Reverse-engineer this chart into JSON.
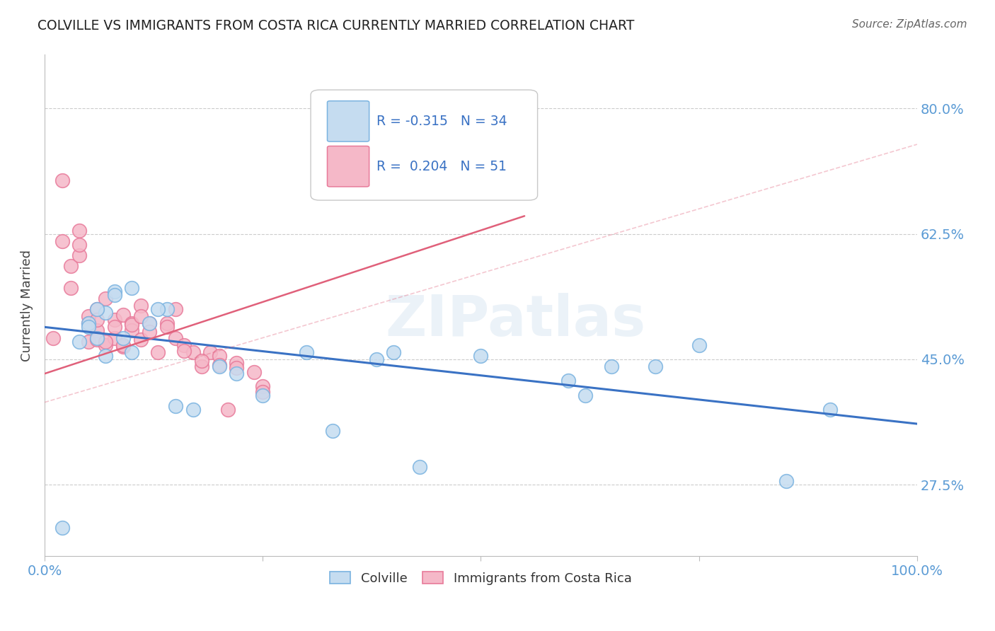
{
  "title": "COLVILLE VS IMMIGRANTS FROM COSTA RICA CURRENTLY MARRIED CORRELATION CHART",
  "source": "Source: ZipAtlas.com",
  "ylabel": "Currently Married",
  "xlim": [
    0.0,
    1.0
  ],
  "ylim": [
    0.175,
    0.875
  ],
  "ytick_labels": [
    "27.5%",
    "45.0%",
    "62.5%",
    "80.0%"
  ],
  "ytick_values": [
    0.275,
    0.45,
    0.625,
    0.8
  ],
  "grid_color": "#cccccc",
  "background_color": "#ffffff",
  "blue_edge": "#7ab3e0",
  "blue_fill": "#c5dcf0",
  "pink_edge": "#e87a9a",
  "pink_fill": "#f5b8c8",
  "trend_blue": "#3a72c4",
  "trend_pink": "#e0607a",
  "R_blue": -0.315,
  "N_blue": 34,
  "R_pink": 0.204,
  "N_pink": 51,
  "watermark": "ZIPatlas",
  "blue_scatter_x": [
    0.02,
    0.04,
    0.05,
    0.06,
    0.07,
    0.07,
    0.08,
    0.09,
    0.1,
    0.12,
    0.14,
    0.17,
    0.2,
    0.22,
    0.25,
    0.3,
    0.38,
    0.4,
    0.43,
    0.5,
    0.6,
    0.62,
    0.65,
    0.7,
    0.75,
    0.85,
    0.9,
    0.05,
    0.06,
    0.08,
    0.1,
    0.13,
    0.15,
    0.33
  ],
  "blue_scatter_y": [
    0.215,
    0.475,
    0.5,
    0.48,
    0.515,
    0.455,
    0.545,
    0.48,
    0.46,
    0.5,
    0.52,
    0.38,
    0.44,
    0.43,
    0.4,
    0.46,
    0.45,
    0.46,
    0.3,
    0.455,
    0.42,
    0.4,
    0.44,
    0.44,
    0.47,
    0.28,
    0.38,
    0.495,
    0.52,
    0.54,
    0.55,
    0.52,
    0.385,
    0.35
  ],
  "pink_scatter_x": [
    0.01,
    0.02,
    0.02,
    0.03,
    0.03,
    0.04,
    0.04,
    0.05,
    0.05,
    0.06,
    0.06,
    0.06,
    0.07,
    0.07,
    0.08,
    0.08,
    0.09,
    0.09,
    0.1,
    0.1,
    0.11,
    0.11,
    0.12,
    0.13,
    0.14,
    0.15,
    0.15,
    0.16,
    0.17,
    0.18,
    0.19,
    0.2,
    0.21,
    0.22,
    0.24,
    0.25,
    0.04,
    0.05,
    0.06,
    0.07,
    0.08,
    0.09,
    0.1,
    0.11,
    0.12,
    0.14,
    0.16,
    0.18,
    0.2,
    0.22,
    0.25
  ],
  "pink_scatter_y": [
    0.48,
    0.7,
    0.615,
    0.58,
    0.55,
    0.63,
    0.595,
    0.51,
    0.475,
    0.52,
    0.49,
    0.478,
    0.535,
    0.47,
    0.505,
    0.48,
    0.512,
    0.468,
    0.5,
    0.49,
    0.525,
    0.478,
    0.5,
    0.46,
    0.5,
    0.52,
    0.48,
    0.47,
    0.46,
    0.44,
    0.46,
    0.455,
    0.38,
    0.445,
    0.432,
    0.412,
    0.61,
    0.5,
    0.505,
    0.475,
    0.495,
    0.47,
    0.498,
    0.51,
    0.488,
    0.495,
    0.462,
    0.448,
    0.442,
    0.438,
    0.405
  ],
  "blue_trend_x": [
    0.0,
    1.0
  ],
  "blue_trend_y": [
    0.495,
    0.36
  ],
  "pink_trend_x": [
    0.0,
    0.55
  ],
  "pink_trend_y": [
    0.43,
    0.65
  ]
}
